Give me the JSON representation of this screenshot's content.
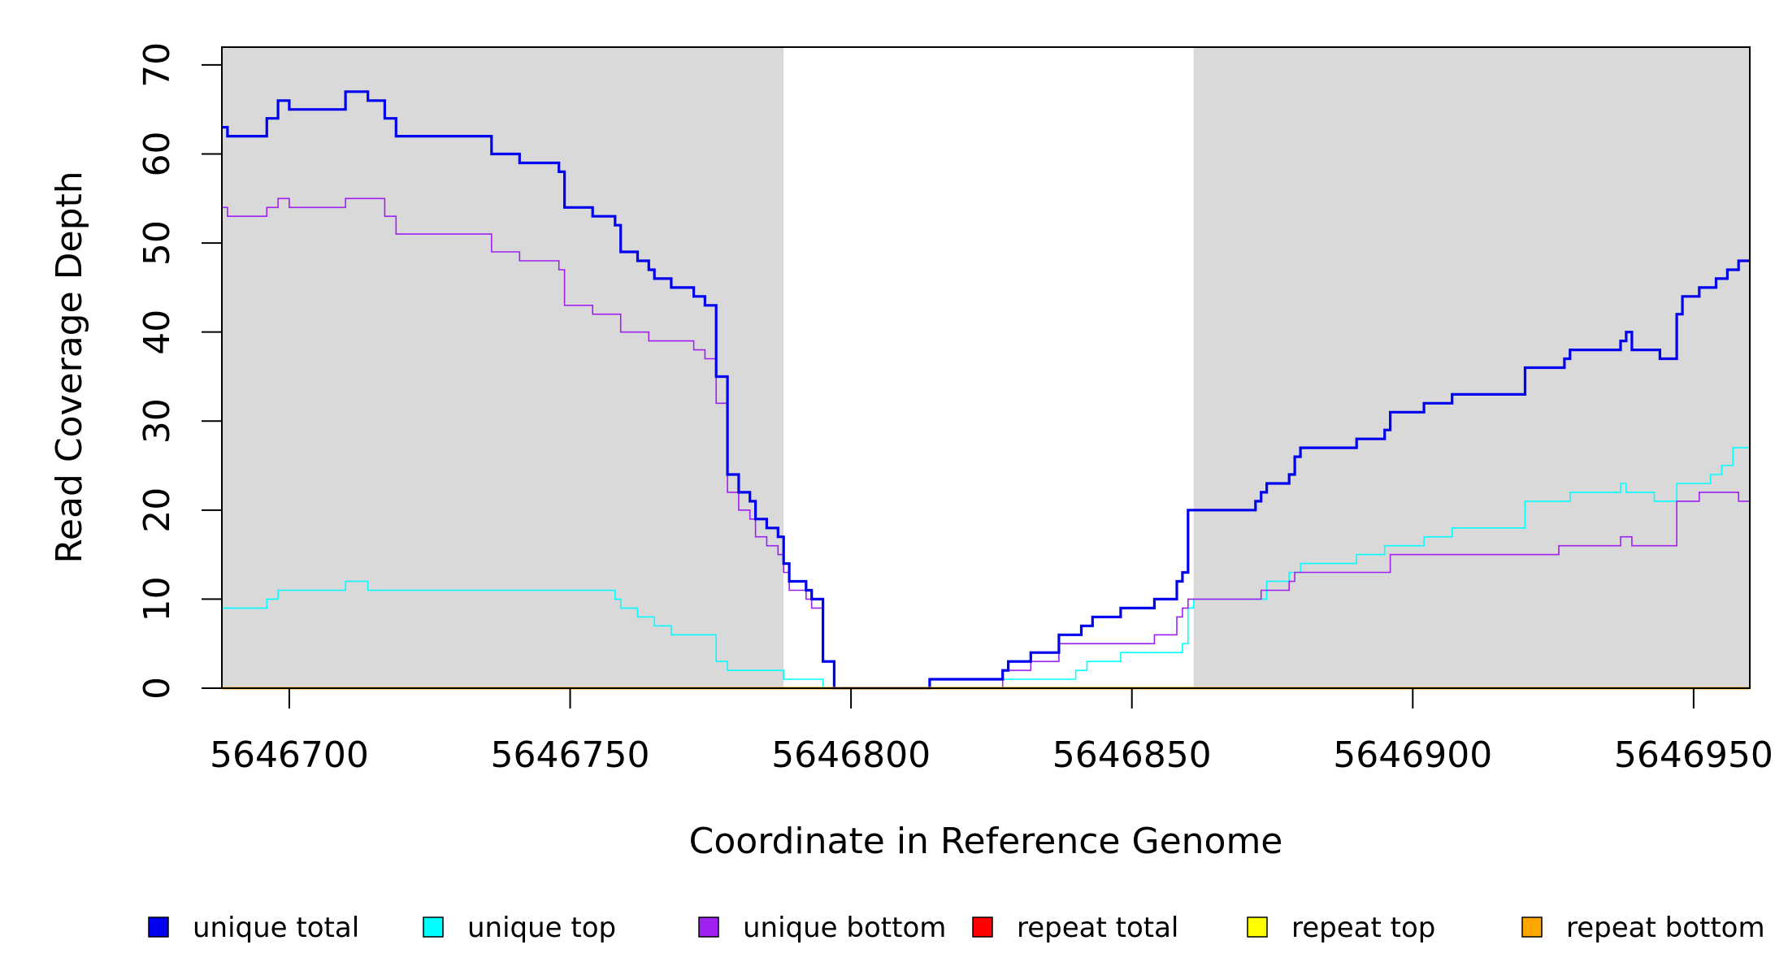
{
  "chart_data": {
    "type": "line",
    "title": "",
    "xlabel": "Coordinate in Reference Genome",
    "ylabel": "Read Coverage Depth",
    "xlim": [
      5646688,
      5646960
    ],
    "ylim": [
      0,
      72
    ],
    "xticks": [
      5646700,
      5646750,
      5646800,
      5646850,
      5646900,
      5646950
    ],
    "yticks": [
      0,
      10,
      20,
      30,
      40,
      50,
      60,
      70
    ],
    "xtick_labels": [
      "5646700",
      "5646750",
      "5646800",
      "5646850",
      "5646900",
      "5646950"
    ],
    "ytick_labels": [
      "0",
      "10",
      "20",
      "30",
      "40",
      "50",
      "60",
      "70"
    ],
    "grid": false,
    "shaded_regions": [
      [
        5646688,
        5646788
      ],
      [
        5646861,
        5646960
      ]
    ],
    "shade_color": "#d9d9d9",
    "legend": {
      "placement": "bottom",
      "entries": [
        {
          "label": "unique total",
          "color": "#0000ee"
        },
        {
          "label": "unique top",
          "color": "#00ffff"
        },
        {
          "label": "unique bottom",
          "color": "#a020f0"
        },
        {
          "label": "repeat total",
          "color": "#ff0000"
        },
        {
          "label": "repeat top",
          "color": "#ffff00"
        },
        {
          "label": "repeat bottom",
          "color": "#ffa500"
        }
      ]
    },
    "series": [
      {
        "name": "unique total",
        "color": "#0000ee",
        "step": true,
        "points": [
          [
            5646688,
            63
          ],
          [
            5646689,
            62
          ],
          [
            5646696,
            64
          ],
          [
            5646698,
            66
          ],
          [
            5646700,
            65
          ],
          [
            5646710,
            67
          ],
          [
            5646714,
            66
          ],
          [
            5646717,
            64
          ],
          [
            5646719,
            62
          ],
          [
            5646736,
            60
          ],
          [
            5646741,
            59
          ],
          [
            5646748,
            58
          ],
          [
            5646749,
            54
          ],
          [
            5646754,
            53
          ],
          [
            5646758,
            52
          ],
          [
            5646759,
            49
          ],
          [
            5646762,
            48
          ],
          [
            5646764,
            47
          ],
          [
            5646765,
            46
          ],
          [
            5646768,
            45
          ],
          [
            5646772,
            44
          ],
          [
            5646774,
            43
          ],
          [
            5646776,
            35
          ],
          [
            5646778,
            24
          ],
          [
            5646780,
            22
          ],
          [
            5646782,
            21
          ],
          [
            5646783,
            19
          ],
          [
            5646785,
            18
          ],
          [
            5646787,
            17
          ],
          [
            5646788,
            14
          ],
          [
            5646789,
            12
          ],
          [
            5646792,
            11
          ],
          [
            5646793,
            10
          ],
          [
            5646795,
            3
          ],
          [
            5646797,
            0
          ],
          [
            5646814,
            1
          ],
          [
            5646827,
            2
          ],
          [
            5646828,
            3
          ],
          [
            5646832,
            4
          ],
          [
            5646837,
            6
          ],
          [
            5646841,
            7
          ],
          [
            5646843,
            8
          ],
          [
            5646848,
            9
          ],
          [
            5646854,
            10
          ],
          [
            5646858,
            12
          ],
          [
            5646859,
            13
          ],
          [
            5646860,
            20
          ],
          [
            5646872,
            21
          ],
          [
            5646873,
            22
          ],
          [
            5646874,
            23
          ],
          [
            5646878,
            24
          ],
          [
            5646879,
            26
          ],
          [
            5646880,
            27
          ],
          [
            5646890,
            28
          ],
          [
            5646895,
            29
          ],
          [
            5646896,
            31
          ],
          [
            5646902,
            32
          ],
          [
            5646907,
            33
          ],
          [
            5646920,
            36
          ],
          [
            5646927,
            37
          ],
          [
            5646928,
            38
          ],
          [
            5646937,
            39
          ],
          [
            5646938,
            40
          ],
          [
            5646939,
            38
          ],
          [
            5646944,
            37
          ],
          [
            5646947,
            42
          ],
          [
            5646948,
            44
          ],
          [
            5646951,
            45
          ],
          [
            5646954,
            46
          ],
          [
            5646956,
            47
          ],
          [
            5646958,
            48
          ],
          [
            5646960,
            48
          ]
        ]
      },
      {
        "name": "unique top",
        "color": "#00ffff",
        "step": true,
        "points": [
          [
            5646688,
            9
          ],
          [
            5646696,
            10
          ],
          [
            5646698,
            11
          ],
          [
            5646710,
            12
          ],
          [
            5646714,
            11
          ],
          [
            5646757,
            11
          ],
          [
            5646758,
            10
          ],
          [
            5646759,
            9
          ],
          [
            5646762,
            8
          ],
          [
            5646765,
            7
          ],
          [
            5646768,
            6
          ],
          [
            5646776,
            3
          ],
          [
            5646778,
            2
          ],
          [
            5646788,
            1
          ],
          [
            5646795,
            0
          ],
          [
            5646814,
            1
          ],
          [
            5646840,
            2
          ],
          [
            5646842,
            3
          ],
          [
            5646848,
            4
          ],
          [
            5646859,
            5
          ],
          [
            5646860,
            9
          ],
          [
            5646861,
            10
          ],
          [
            5646874,
            12
          ],
          [
            5646878,
            13
          ],
          [
            5646880,
            14
          ],
          [
            5646890,
            15
          ],
          [
            5646895,
            16
          ],
          [
            5646902,
            17
          ],
          [
            5646907,
            18
          ],
          [
            5646920,
            21
          ],
          [
            5646928,
            22
          ],
          [
            5646937,
            23
          ],
          [
            5646938,
            22
          ],
          [
            5646943,
            21
          ],
          [
            5646947,
            23
          ],
          [
            5646953,
            24
          ],
          [
            5646955,
            25
          ],
          [
            5646957,
            27
          ],
          [
            5646960,
            27
          ]
        ]
      },
      {
        "name": "unique bottom",
        "color": "#a020f0",
        "step": true,
        "points": [
          [
            5646688,
            54
          ],
          [
            5646689,
            53
          ],
          [
            5646696,
            54
          ],
          [
            5646698,
            55
          ],
          [
            5646700,
            54
          ],
          [
            5646710,
            55
          ],
          [
            5646717,
            53
          ],
          [
            5646719,
            51
          ],
          [
            5646736,
            49
          ],
          [
            5646741,
            48
          ],
          [
            5646748,
            47
          ],
          [
            5646749,
            43
          ],
          [
            5646754,
            42
          ],
          [
            5646759,
            40
          ],
          [
            5646764,
            39
          ],
          [
            5646772,
            38
          ],
          [
            5646774,
            37
          ],
          [
            5646776,
            32
          ],
          [
            5646778,
            22
          ],
          [
            5646780,
            20
          ],
          [
            5646782,
            19
          ],
          [
            5646783,
            17
          ],
          [
            5646785,
            16
          ],
          [
            5646787,
            15
          ],
          [
            5646788,
            13
          ],
          [
            5646789,
            11
          ],
          [
            5646792,
            10
          ],
          [
            5646793,
            9
          ],
          [
            5646795,
            3
          ],
          [
            5646797,
            0
          ],
          [
            5646827,
            2
          ],
          [
            5646832,
            3
          ],
          [
            5646837,
            5
          ],
          [
            5646854,
            6
          ],
          [
            5646858,
            8
          ],
          [
            5646859,
            9
          ],
          [
            5646860,
            10
          ],
          [
            5646873,
            11
          ],
          [
            5646878,
            12
          ],
          [
            5646879,
            13
          ],
          [
            5646896,
            15
          ],
          [
            5646926,
            16
          ],
          [
            5646937,
            17
          ],
          [
            5646939,
            16
          ],
          [
            5646947,
            21
          ],
          [
            5646951,
            22
          ],
          [
            5646958,
            21
          ],
          [
            5646960,
            21
          ]
        ]
      },
      {
        "name": "repeat total",
        "color": "#ff0000",
        "step": true,
        "points": [
          [
            5646688,
            0
          ],
          [
            5646960,
            0
          ]
        ]
      },
      {
        "name": "repeat top",
        "color": "#ffff00",
        "step": true,
        "points": [
          [
            5646688,
            0
          ],
          [
            5646960,
            0
          ]
        ]
      },
      {
        "name": "repeat bottom",
        "color": "#ffa500",
        "step": true,
        "points": [
          [
            5646688,
            0
          ],
          [
            5646960,
            0
          ]
        ]
      }
    ]
  }
}
